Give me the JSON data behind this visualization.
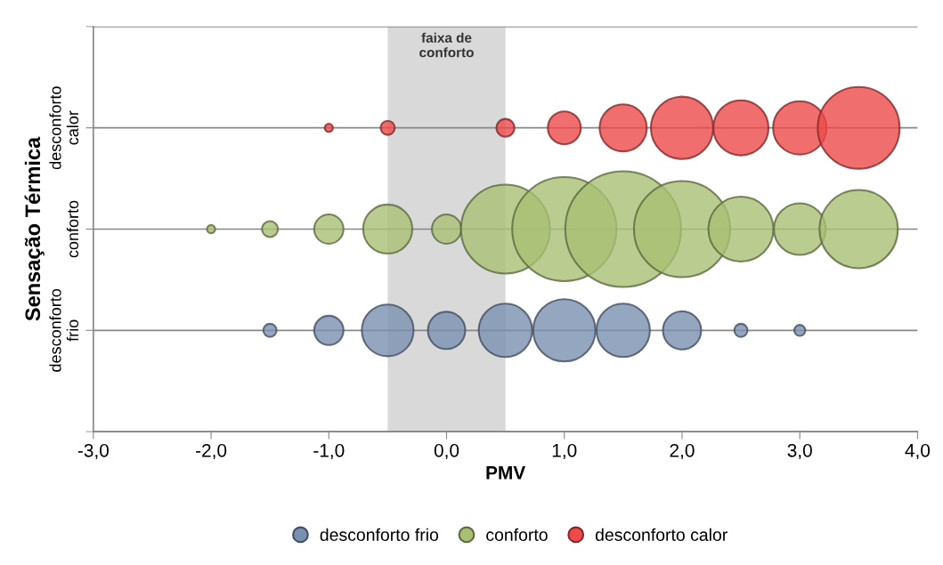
{
  "chart_data": {
    "type": "bubble",
    "orientation": "horizontal",
    "xlabel": "PMV",
    "ylabel": "Sensação Térmica",
    "xlim": [
      -3,
      4
    ],
    "xticks": [
      {
        "value": -3,
        "label": "-3,0"
      },
      {
        "value": -2,
        "label": "-2,0"
      },
      {
        "value": -1,
        "label": "-1,0"
      },
      {
        "value": 0,
        "label": "0,0"
      },
      {
        "value": 1,
        "label": "1,0"
      },
      {
        "value": 2,
        "label": "2,0"
      },
      {
        "value": 3,
        "label": "3,0"
      },
      {
        "value": 4,
        "label": "4,0"
      }
    ],
    "categories": [
      "desconforto\ncalor",
      "conforto",
      "desconforto\nfrio"
    ],
    "grid": "y",
    "legend": "bottom",
    "marker": "circle",
    "bands": [
      {
        "axis": "x",
        "from": -0.5,
        "to": 0.5,
        "label": "faixa de\nconforto",
        "color": "#d9d9d9"
      }
    ],
    "series": [
      {
        "name": "desconforto frio",
        "color": "#7a90b0",
        "x": [
          "desconforto\nfrio",
          "desconforto\nfrio",
          "desconforto\nfrio",
          "desconforto\nfrio",
          "desconforto\nfrio",
          "desconforto\nfrio",
          "desconforto\nfrio",
          "desconforto\nfrio",
          "desconforto\nfrio",
          "desconforto\nfrio"
        ],
        "values": [
          -1.5,
          -1.0,
          -0.5,
          0.0,
          0.5,
          1.0,
          1.5,
          2.0,
          2.5,
          3.0
        ],
        "sizes": [
          0.013,
          0.064,
          0.2,
          0.104,
          0.213,
          0.29,
          0.213,
          0.109,
          0.013,
          0.009
        ]
      },
      {
        "name": "conforto",
        "color": "#a9bf73",
        "x": [
          "conforto",
          "conforto",
          "conforto",
          "conforto",
          "conforto",
          "conforto",
          "conforto",
          "conforto",
          "conforto",
          "conforto",
          "conforto",
          "conforto"
        ],
        "values": [
          -2.0,
          -1.5,
          -1.0,
          -0.5,
          0.0,
          0.5,
          1.0,
          1.5,
          2.0,
          2.5,
          3.0,
          3.5
        ],
        "sizes": [
          0.005,
          0.019,
          0.064,
          0.18,
          0.064,
          0.59,
          0.81,
          1,
          0.69,
          0.315,
          0.2,
          0.458
        ]
      },
      {
        "name": "desconforto calor",
        "color": "#ee4a4a",
        "x": [
          "desconforto\ncalor",
          "desconforto\ncalor",
          "desconforto\ncalor",
          "desconforto\ncalor",
          "desconforto\ncalor",
          "desconforto\ncalor",
          "desconforto\ncalor",
          "desconforto\ncalor",
          "desconforto\ncalor"
        ],
        "values": [
          -1.0,
          -0.5,
          0.5,
          1.0,
          1.5,
          2.0,
          2.5,
          3.0,
          3.5
        ],
        "sizes": [
          0.005,
          0.015,
          0.024,
          0.081,
          0.166,
          0.29,
          0.227,
          0.213,
          0.5
        ]
      }
    ]
  }
}
